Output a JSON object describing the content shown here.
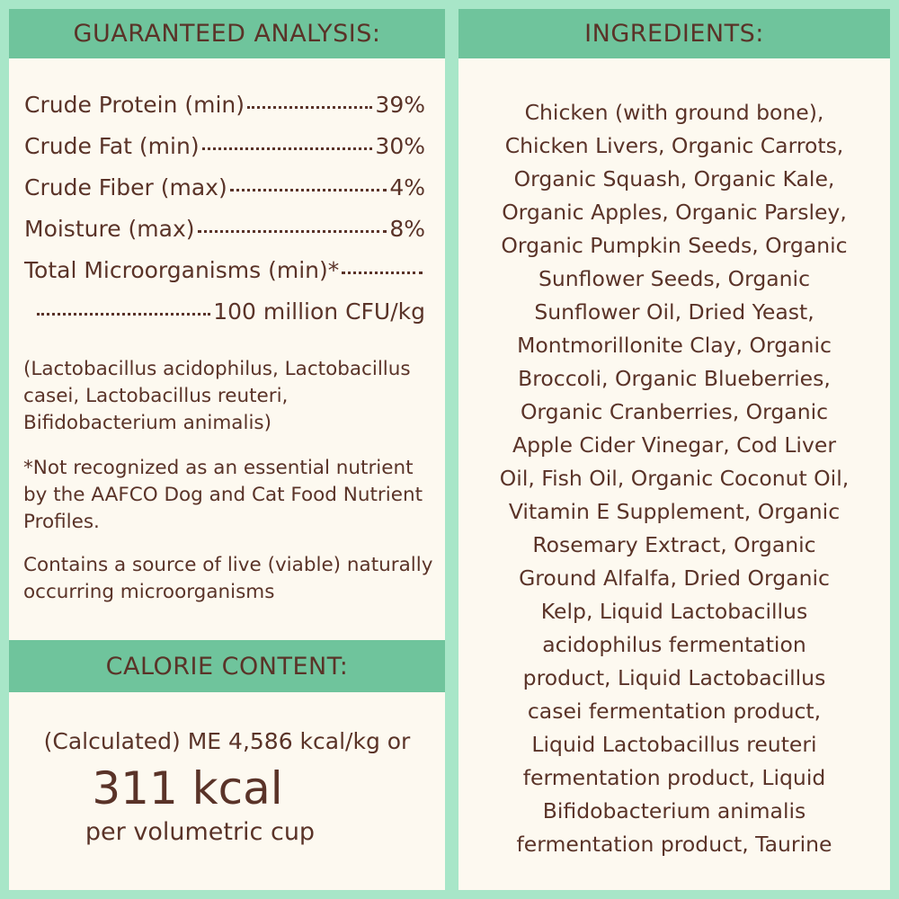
{
  "colors": {
    "background": "#a8e6c8",
    "header": "#6fc49c",
    "panel": "#fdf9f0",
    "text": "#5a3328"
  },
  "analysis": {
    "title": "GUARANTEED ANALYSIS:",
    "rows": [
      {
        "label": "Crude Protein (min)",
        "value": "39%"
      },
      {
        "label": "Crude Fat (min)",
        "value": "30%"
      },
      {
        "label": "Crude Fiber (max)",
        "value": "4%"
      },
      {
        "label": "Moisture (max)",
        "value": "8%"
      },
      {
        "label": "Total Microorganisms (min)*",
        "value": "100 million CFU/kg"
      }
    ],
    "strains": "(Lactobacillus acidophilus, Lactobacillus casei, Lactobacillus reuteri, Bifidobacterium animalis)",
    "footnote": "*Not recognized as an essential nutrient by the AAFCO Dog and Cat Food Nutrient Profiles.",
    "live_note": "Contains a source of live (viable) naturally occurring microorganisms"
  },
  "calorie": {
    "title": "CALORIE CONTENT:",
    "line1": "(Calculated) ME 4,586 kcal/kg or",
    "big": "311 kcal",
    "line3": "per volumetric cup"
  },
  "ingredients": {
    "title": "INGREDIENTS:",
    "lines": [
      "Chicken (with ground bone),",
      "Chicken Livers, Organic Carrots,",
      "Organic Squash, Organic Kale,",
      "Organic Apples, Organic Parsley,",
      "Organic Pumpkin Seeds, Organic",
      "Sunflower Seeds, Organic",
      "Sunflower Oil, Dried Yeast,",
      "Montmorillonite Clay, Organic",
      "Broccoli, Organic Blueberries,",
      "Organic Cranberries, Organic",
      "Apple Cider Vinegar, Cod Liver",
      "Oil, Fish Oil, Organic Coconut Oil,",
      "Vitamin E Supplement, Organic",
      "Rosemary Extract, Organic",
      "Ground Alfalfa, Dried Organic",
      "Kelp, Liquid Lactobacillus",
      "acidophilus fermentation",
      "product, Liquid Lactobacillus",
      "casei fermentation product,",
      "Liquid Lactobacillus reuteri",
      "fermentation product, Liquid",
      "Bifidobacterium animalis",
      "fermentation product, Taurine"
    ]
  }
}
